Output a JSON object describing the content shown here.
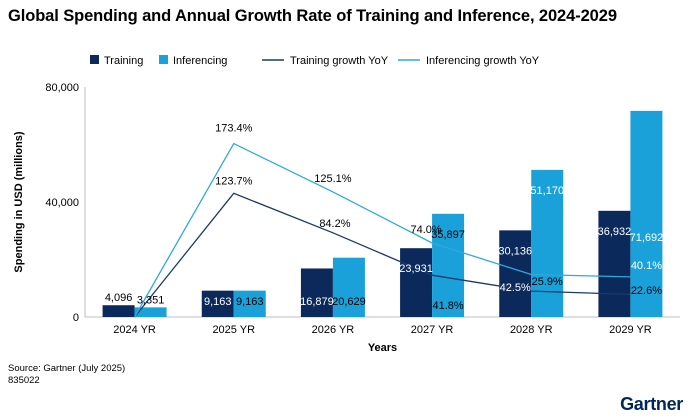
{
  "chart_data": {
    "type": "bar",
    "title": "Global Spending and Annual Growth Rate of Training and Inference, 2024-2029",
    "categories": [
      "2024 YR",
      "2025 YR",
      "2026 YR",
      "2027 YR",
      "2028 YR",
      "2029 YR"
    ],
    "xlabel": "Years",
    "ylabel": "Spending in USD (millions)",
    "ylim": [
      0,
      80000
    ],
    "yticks": [
      0,
      40000,
      80000
    ],
    "ytick_labels": [
      "0",
      "40,000",
      "80,000"
    ],
    "bar_series": [
      {
        "name": "Training",
        "color": "#0b2a5b",
        "values": [
          4096,
          9163,
          16879,
          23931,
          30136,
          36932
        ],
        "labels": [
          "4,096",
          "9,163",
          "16,879",
          "23,931",
          "30,136",
          "36,932"
        ]
      },
      {
        "name": "Inferencing",
        "color": "#1ba1d9",
        "values": [
          3351,
          9163,
          20629,
          35897,
          51170,
          71692
        ],
        "labels": [
          "3,351",
          "9,163",
          "20,629",
          "35,897",
          "51,170",
          "71,692"
        ]
      }
    ],
    "line_series": [
      {
        "name": "Training growth YoY",
        "color": "#1c3a68",
        "points": [
          null,
          123.7,
          84.2,
          41.8,
          25.9,
          22.6
        ],
        "labels": [
          "",
          "123.7%",
          "84.2%",
          "41.8%",
          "25.9%",
          "22.6%"
        ]
      },
      {
        "name": "Inferencing growth YoY",
        "color": "#2ea9dc",
        "points": [
          null,
          173.4,
          125.1,
          74.0,
          42.5,
          40.1
        ],
        "labels": [
          "",
          "173.4%",
          "125.1%",
          "74.0%",
          "42.5%",
          "40.1%"
        ]
      }
    ],
    "legend_position": "top-left",
    "grid": false
  },
  "source": "Source: Gartner (July 2025)",
  "doc_id": "835022",
  "brand": "Gartner"
}
